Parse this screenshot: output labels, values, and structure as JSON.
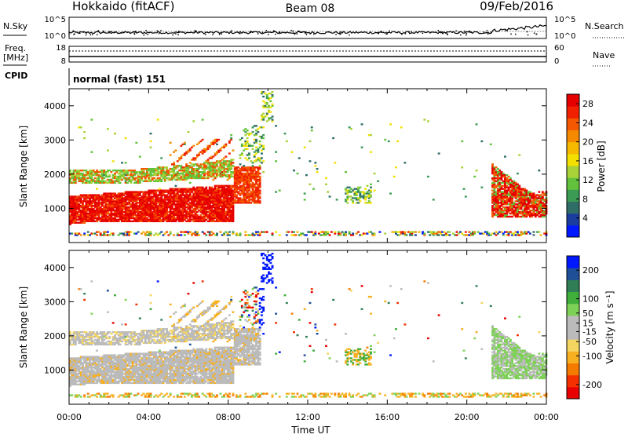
{
  "header": {
    "station": "Hokkaido (fitACF)",
    "beam": "Beam 08",
    "date": "09/Feb/2016"
  },
  "noise_panel": {
    "left_label": "N.Sky",
    "right_label": "N.Search",
    "y_ticks_left": [
      "10^5",
      "10^0"
    ],
    "y_ticks_right": [
      "10^5",
      "10^0"
    ]
  },
  "freq_panel": {
    "left_label_1": "Freq.",
    "left_label_2": "[MHz]",
    "right_label": "Nave",
    "y_ticks_left": [
      "18",
      "8"
    ],
    "y_ticks_right": [
      "60",
      "0"
    ]
  },
  "cpid_panel": {
    "label": "CPID",
    "text": "normal (fast) 151"
  },
  "chart_data": [
    {
      "type": "heatmap",
      "name": "power",
      "ylabel": "Slant Range [km]",
      "y_ticks": [
        1000,
        2000,
        3000,
        4000
      ],
      "ylim": [
        0,
        4500
      ],
      "xlim": [
        "00:00",
        "24:00"
      ],
      "colorbar": {
        "label": "Power [dB]",
        "ticks": [
          4,
          8,
          12,
          16,
          20,
          24,
          28
        ],
        "range": [
          0,
          30
        ],
        "colors": [
          "#0018ff",
          "#1a3d9e",
          "#2f6e66",
          "#3b9b55",
          "#62c23c",
          "#a8d238",
          "#f4e000",
          "#f7b800",
          "#f58a00",
          "#f45800",
          "#f02000",
          "#e60000"
        ]
      }
    },
    {
      "type": "heatmap",
      "name": "velocity",
      "ylabel": "Slant Range [km]",
      "y_ticks": [
        1000,
        2000,
        3000,
        4000
      ],
      "ylim": [
        0,
        4500
      ],
      "xlim": [
        "00:00",
        "24:00"
      ],
      "colorbar": {
        "label": "Velocity [m s⁻¹]",
        "ticks": [
          -200,
          -100,
          -50,
          -15,
          15,
          50,
          100,
          200
        ],
        "range": [
          -250,
          250
        ],
        "colors": [
          "#e80000",
          "#f43000",
          "#f57a00",
          "#f7b020",
          "#f4d560",
          "#bbbbbb",
          "#bbbbbb",
          "#7ed157",
          "#3fae3a",
          "#2f7e55",
          "#1f4f96",
          "#0018ff"
        ]
      }
    }
  ],
  "x_axis": {
    "ticks": [
      "00:00",
      "04:00",
      "08:00",
      "12:00",
      "16:00",
      "20:00",
      "00:00"
    ],
    "label": "Time UT"
  }
}
